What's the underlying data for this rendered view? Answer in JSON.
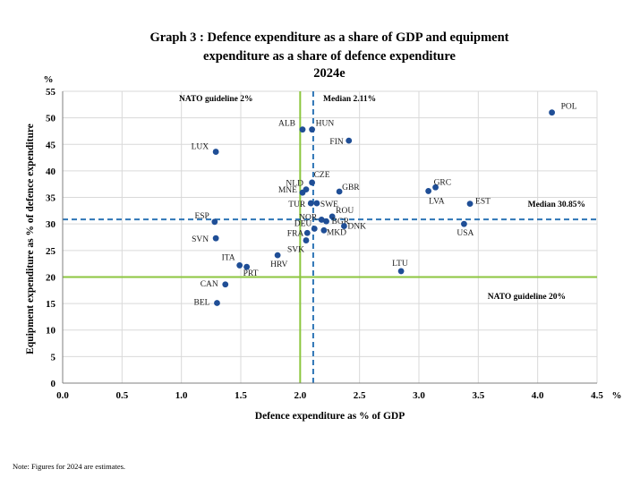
{
  "chart_data": {
    "type": "scatter",
    "title_lines": [
      "Graph 3 : Defence expenditure as a share of GDP and equipment",
      "expenditure as a share of defence expenditure",
      "2024e"
    ],
    "xlabel": "Defence expenditure as % of GDP",
    "ylabel": "Equipment expenditure as % of defence expenditure",
    "x_unit": "%",
    "y_unit": "%",
    "xlim": [
      0,
      4.5
    ],
    "ylim": [
      0,
      55
    ],
    "x_ticks": [
      "0.0",
      "0.5",
      "1.0",
      "1.5",
      "2.0",
      "2.5",
      "3.0",
      "3.5",
      "4.0",
      "4.5"
    ],
    "y_ticks": [
      "0",
      "5",
      "10",
      "15",
      "20",
      "25",
      "30",
      "35",
      "40",
      "45",
      "50",
      "55"
    ],
    "grid": true,
    "marker_color": "#1f4e96",
    "points": [
      {
        "label": "POL",
        "x": 4.12,
        "y": 51.0
      },
      {
        "label": "ALB",
        "x": 2.02,
        "y": 47.8
      },
      {
        "label": "HUN",
        "x": 2.1,
        "y": 47.8
      },
      {
        "label": "FIN",
        "x": 2.41,
        "y": 45.7
      },
      {
        "label": "LUX",
        "x": 1.29,
        "y": 43.6
      },
      {
        "label": "CZE",
        "x": 2.1,
        "y": 37.8
      },
      {
        "label": "NLD",
        "x": 2.05,
        "y": 36.5
      },
      {
        "label": "MNE",
        "x": 2.02,
        "y": 35.9
      },
      {
        "label": "GBR",
        "x": 2.33,
        "y": 36.1
      },
      {
        "label": "TUR",
        "x": 2.09,
        "y": 33.9
      },
      {
        "label": "SWE",
        "x": 2.14,
        "y": 33.9
      },
      {
        "label": "GRC",
        "x": 3.14,
        "y": 36.9
      },
      {
        "label": "LVA",
        "x": 3.08,
        "y": 36.2
      },
      {
        "label": "EST",
        "x": 3.43,
        "y": 33.8
      },
      {
        "label": "ESP",
        "x": 1.28,
        "y": 30.4
      },
      {
        "label": "ROU",
        "x": 2.27,
        "y": 31.4
      },
      {
        "label": "NOR",
        "x": 2.18,
        "y": 30.8
      },
      {
        "label": "BGR",
        "x": 2.22,
        "y": 30.5
      },
      {
        "label": "DEU",
        "x": 2.12,
        "y": 29.1
      },
      {
        "label": "FRA",
        "x": 2.06,
        "y": 28.3
      },
      {
        "label": "MKD",
        "x": 2.2,
        "y": 28.8
      },
      {
        "label": "DNK",
        "x": 2.37,
        "y": 29.6
      },
      {
        "label": "USA",
        "x": 3.38,
        "y": 30.0
      },
      {
        "label": "SVN",
        "x": 1.29,
        "y": 27.3
      },
      {
        "label": "SVK",
        "x": 2.05,
        "y": 26.9
      },
      {
        "label": "ITA",
        "x": 1.49,
        "y": 22.2
      },
      {
        "label": "PRT",
        "x": 1.55,
        "y": 21.9
      },
      {
        "label": "HRV",
        "x": 1.81,
        "y": 24.1
      },
      {
        "label": "LTU",
        "x": 2.85,
        "y": 21.1
      },
      {
        "label": "CAN",
        "x": 1.37,
        "y": 18.6
      },
      {
        "label": "BEL",
        "x": 1.3,
        "y": 15.1
      }
    ],
    "reference_lines": [
      {
        "label": "NATO guideline 2%",
        "axis": "x",
        "value": 2.0,
        "style": "solid",
        "color": "#8cc63f"
      },
      {
        "label": "NATO guideline 20%",
        "axis": "y",
        "value": 20,
        "style": "solid",
        "color": "#8cc63f"
      },
      {
        "label": "Median 2.11%",
        "axis": "x",
        "value": 2.11,
        "style": "dashed",
        "color": "#2e75b6"
      },
      {
        "label": "Median 30.85%",
        "axis": "y",
        "value": 30.85,
        "style": "dashed",
        "color": "#2e75b6"
      }
    ]
  },
  "footnote": "Note: Figures for 2024 are estimates."
}
